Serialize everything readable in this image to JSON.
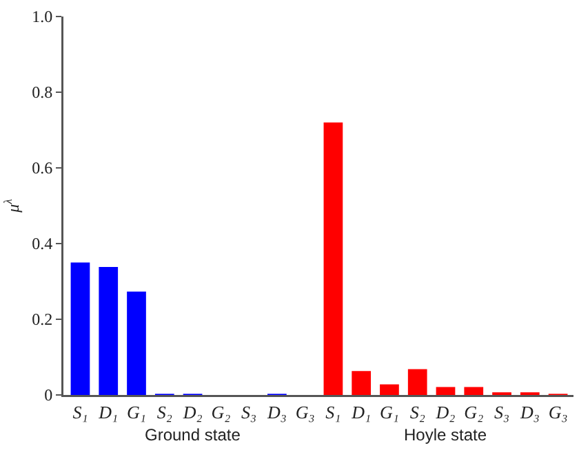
{
  "chart_data": {
    "type": "bar",
    "ylabel": "μ$^{λ}$",
    "categories": [
      "S₁",
      "D₁",
      "G₁",
      "S₂",
      "D₂",
      "G₂",
      "S₃",
      "D₃",
      "G₃",
      "S₁",
      "D₁",
      "G₁",
      "S₂",
      "D₂",
      "G₂",
      "S₃",
      "D₃",
      "G₃"
    ],
    "series": [
      {
        "name": "Ground state",
        "color": "#0000ff",
        "values": [
          0.35,
          0.338,
          0.273,
          0.003,
          0.003,
          0,
          0,
          0.003,
          0,
          null,
          null,
          null,
          null,
          null,
          null,
          null,
          null,
          null
        ]
      },
      {
        "name": "Hoyle state",
        "color": "#ff0000",
        "values": [
          null,
          null,
          null,
          null,
          null,
          null,
          null,
          null,
          null,
          0.72,
          0.063,
          0.028,
          0.068,
          0.021,
          0.021,
          0.007,
          0.007,
          0.003
        ]
      }
    ],
    "ylim": [
      0,
      1
    ],
    "yticks": [
      {
        "value": 0,
        "label": "0"
      },
      0.2,
      0.4,
      0.6,
      0.8,
      {
        "value": 1,
        "label": "1.0"
      }
    ],
    "grid": false,
    "legend": false
  }
}
